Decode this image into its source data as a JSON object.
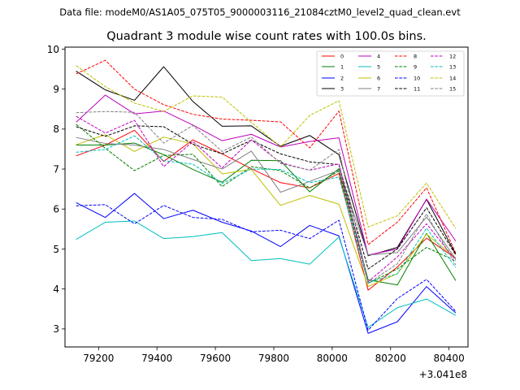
{
  "header": {
    "data_file": "Data file: modeM0/AS1A05_075T05_9000003116_21084cztM0_level2_quad_clean.evt"
  },
  "chart_data": {
    "type": "line",
    "title": "Quadrant 3 module wise count rates with 100.0s bins.",
    "xlabel": "",
    "ylabel": "",
    "x_offset_label": "+3.041e8",
    "xlim": [
      79085,
      80465
    ],
    "ylim": [
      2.55,
      10.05
    ],
    "x_ticks": [
      79200,
      79400,
      79600,
      79800,
      80000,
      80200,
      80400
    ],
    "x_tick_labels": [
      "79200",
      "79400",
      "79600",
      "79800",
      "80000",
      "80200",
      "80400"
    ],
    "y_ticks": [
      3,
      4,
      5,
      6,
      7,
      8,
      9,
      10
    ],
    "y_tick_labels": [
      "3",
      "4",
      "5",
      "6",
      "7",
      "8",
      "9",
      "10"
    ],
    "grid": false,
    "legend_position": "top-right",
    "x": [
      79123,
      79223,
      79323,
      79423,
      79523,
      79623,
      79723,
      79823,
      79923,
      80023,
      80123,
      80223,
      80323,
      80423
    ],
    "series": [
      {
        "name": "0",
        "color": "#ff0000",
        "dash": "solid",
        "values": [
          7.33,
          7.6,
          7.97,
          7.19,
          7.73,
          7.38,
          7.01,
          6.66,
          6.53,
          6.89,
          3.97,
          4.55,
          5.27,
          4.77
        ]
      },
      {
        "name": "1",
        "color": "#008000",
        "dash": "solid",
        "values": [
          7.6,
          7.6,
          7.65,
          7.36,
          6.99,
          6.67,
          7.22,
          7.21,
          6.43,
          7.01,
          4.23,
          4.1,
          5.39,
          4.21
        ]
      },
      {
        "name": "2",
        "color": "#0000ff",
        "dash": "solid",
        "values": [
          6.16,
          5.79,
          6.39,
          5.76,
          5.97,
          5.67,
          5.45,
          5.06,
          5.59,
          5.33,
          2.89,
          3.18,
          4.06,
          3.4
        ]
      },
      {
        "name": "3",
        "color": "#000000",
        "dash": "solid",
        "values": [
          9.45,
          8.98,
          8.72,
          9.56,
          8.69,
          8.07,
          8.08,
          7.57,
          7.84,
          7.36,
          4.83,
          5.04,
          6.24,
          4.87
        ]
      },
      {
        "name": "4",
        "color": "#c000c0",
        "dash": "solid",
        "values": [
          8.17,
          8.85,
          8.38,
          8.45,
          8.1,
          7.71,
          7.87,
          7.55,
          7.69,
          7.78,
          4.85,
          5.0,
          6.25,
          5.2
        ]
      },
      {
        "name": "5",
        "color": "#00bfbf",
        "dash": "solid",
        "values": [
          5.24,
          5.67,
          5.7,
          5.26,
          5.31,
          5.41,
          4.71,
          4.76,
          4.62,
          5.3,
          3.04,
          3.53,
          3.75,
          3.34
        ]
      },
      {
        "name": "6",
        "color": "#bfbf00",
        "dash": "solid",
        "values": [
          7.61,
          7.86,
          7.44,
          7.8,
          7.63,
          6.88,
          6.99,
          6.09,
          6.34,
          6.12,
          4.06,
          4.38,
          5.37,
          4.78
        ]
      },
      {
        "name": "7",
        "color": "#808080",
        "dash": "solid",
        "values": [
          7.79,
          7.64,
          7.6,
          7.49,
          7.24,
          7.0,
          7.45,
          6.42,
          6.69,
          6.97,
          4.85,
          4.91,
          5.8,
          4.75
        ]
      },
      {
        "name": "8",
        "color": "#ff0000",
        "dash": "dashed",
        "values": [
          9.38,
          9.72,
          9.0,
          8.61,
          8.37,
          8.25,
          8.22,
          8.18,
          7.53,
          8.45,
          5.11,
          5.67,
          6.53,
          4.9
        ]
      },
      {
        "name": "9",
        "color": "#008000",
        "dash": "dashed",
        "values": [
          8.12,
          7.52,
          6.96,
          7.34,
          7.37,
          6.56,
          7.06,
          6.96,
          6.53,
          6.95,
          4.14,
          4.5,
          5.04,
          4.7
        ]
      },
      {
        "name": "10",
        "color": "#0000ff",
        "dash": "dashed",
        "values": [
          6.08,
          6.11,
          5.63,
          6.09,
          5.79,
          5.74,
          5.43,
          5.47,
          5.26,
          5.72,
          2.97,
          3.76,
          4.24,
          3.44
        ]
      },
      {
        "name": "11",
        "color": "#000000",
        "dash": "dashed",
        "values": [
          8.06,
          7.82,
          8.08,
          8.06,
          7.62,
          7.38,
          7.72,
          7.38,
          7.18,
          7.11,
          4.5,
          5.0,
          6.03,
          4.85
        ]
      },
      {
        "name": "12",
        "color": "#c000c0",
        "dash": "dashed",
        "values": [
          8.32,
          7.9,
          8.22,
          7.06,
          7.69,
          7.03,
          7.73,
          7.16,
          6.97,
          7.13,
          4.18,
          4.8,
          5.63,
          4.72
        ]
      },
      {
        "name": "13",
        "color": "#00bfbf",
        "dash": "dashed",
        "values": [
          7.42,
          7.49,
          7.83,
          7.21,
          7.12,
          6.64,
          7.0,
          6.99,
          6.66,
          6.8,
          4.16,
          4.38,
          5.52,
          4.54
        ]
      },
      {
        "name": "14",
        "color": "#bfbf00",
        "dash": "dashed",
        "values": [
          9.59,
          9.06,
          8.65,
          8.44,
          8.83,
          8.8,
          8.17,
          7.55,
          8.34,
          8.71,
          5.55,
          5.83,
          6.65,
          5.51
        ]
      },
      {
        "name": "15",
        "color": "#808080",
        "dash": "dashed",
        "values": [
          8.41,
          8.44,
          8.42,
          7.65,
          8.09,
          7.44,
          7.8,
          7.14,
          6.97,
          7.49,
          4.14,
          4.63,
          5.88,
          4.6
        ]
      }
    ]
  }
}
